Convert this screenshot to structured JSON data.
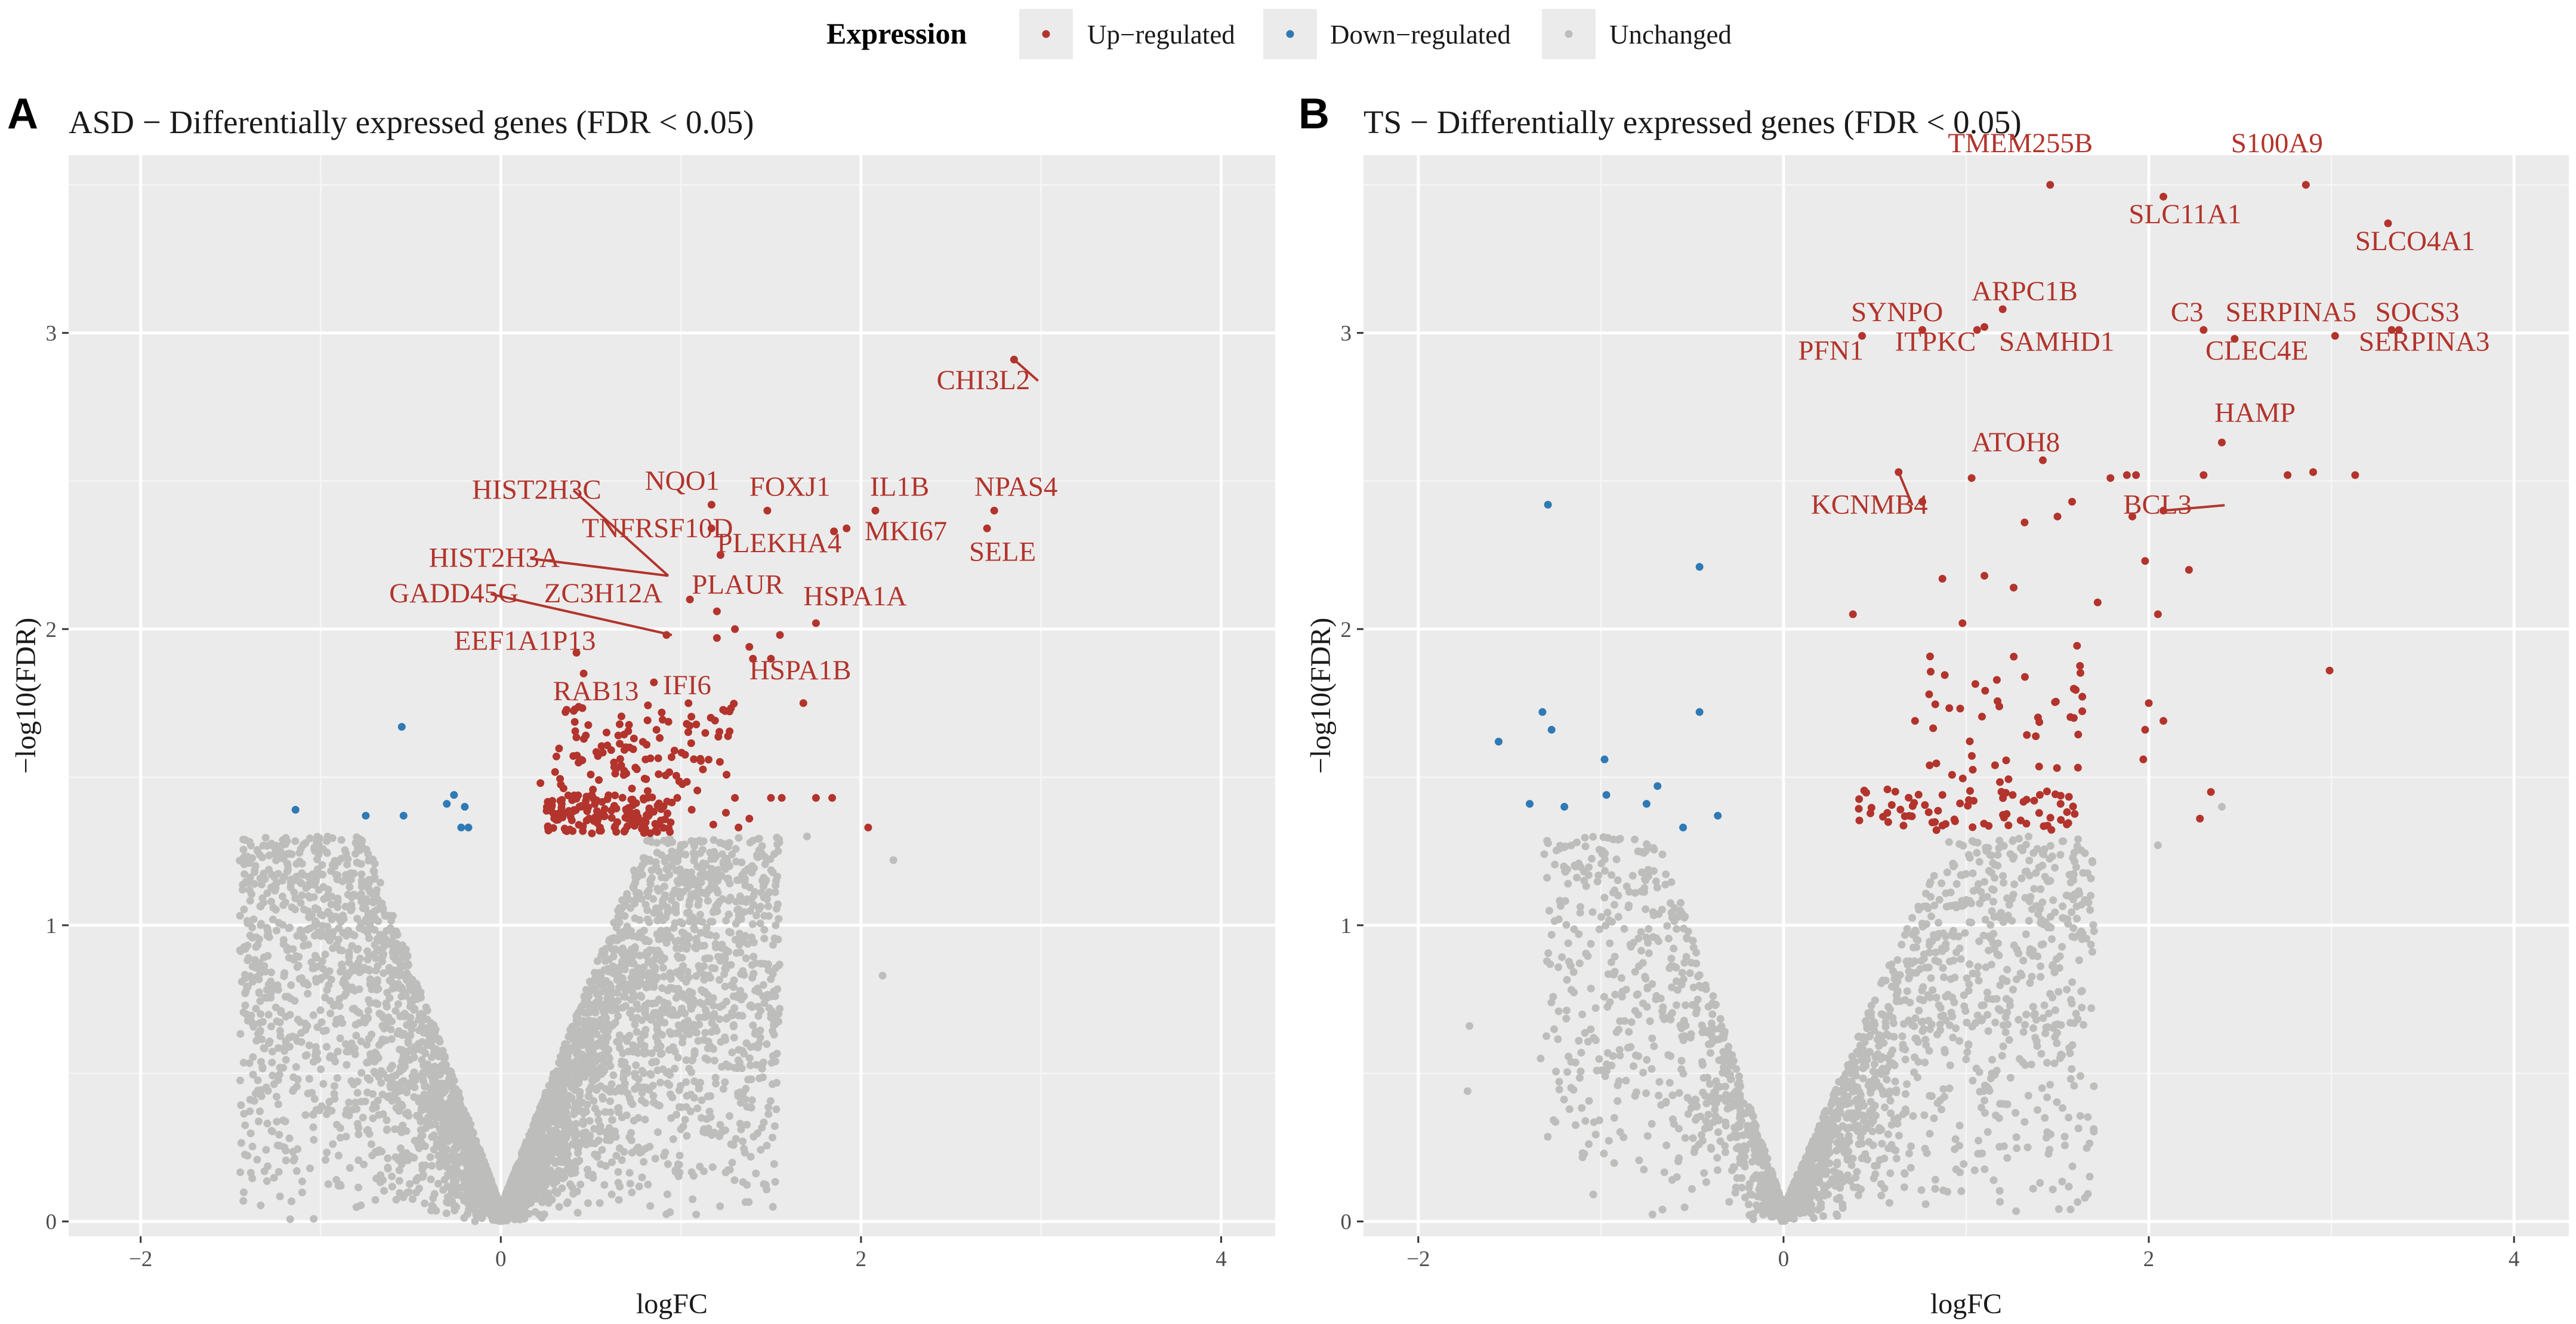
{
  "legend": {
    "title": "Expression",
    "items": [
      {
        "key": "up",
        "label": "Up−regulated",
        "color": "#b2342c"
      },
      {
        "key": "down",
        "label": "Down−regulated",
        "color": "#2f79b5"
      },
      {
        "key": "unchanged",
        "label": "Unchanged",
        "color": "#bdbdbb"
      }
    ]
  },
  "chart_data": [
    {
      "type": "scatter",
      "panel": "A",
      "title": "ASD − Differentially expressed genes (FDR < 0.05)",
      "xlabel": "logFC",
      "ylabel": "−log10(FDR)",
      "xlim": [
        -2.4,
        4.3
      ],
      "ylim": [
        -0.05,
        3.6
      ],
      "xticks": [
        -2,
        0,
        2,
        4
      ],
      "yticks": [
        0,
        1,
        2,
        3
      ],
      "xtick_labels": [
        "−2",
        "0",
        "2",
        "4"
      ],
      "ytick_labels": [
        "0",
        "1",
        "2",
        "3"
      ],
      "up_points": [
        [
          2.85,
          2.91
        ],
        [
          2.7,
          2.34
        ],
        [
          2.74,
          2.4
        ],
        [
          2.08,
          2.4
        ],
        [
          1.92,
          2.34
        ],
        [
          1.85,
          2.33
        ],
        [
          1.48,
          2.4
        ],
        [
          1.17,
          2.42
        ],
        [
          1.17,
          2.34
        ],
        [
          1.22,
          2.25
        ],
        [
          1.05,
          2.1
        ],
        [
          1.2,
          2.06
        ],
        [
          1.75,
          2.02
        ],
        [
          1.3,
          2.0
        ],
        [
          1.55,
          1.98
        ],
        [
          1.2,
          1.97
        ],
        [
          0.92,
          1.98
        ],
        [
          1.38,
          1.94
        ],
        [
          1.5,
          1.9
        ],
        [
          1.4,
          1.9
        ],
        [
          0.42,
          1.92
        ],
        [
          0.46,
          1.85
        ],
        [
          0.85,
          1.82
        ],
        [
          1.68,
          1.75
        ],
        [
          2.04,
          1.33
        ],
        [
          1.84,
          1.43
        ],
        [
          1.75,
          1.43
        ],
        [
          1.56,
          1.43
        ],
        [
          1.5,
          1.43
        ],
        [
          1.3,
          1.43
        ],
        [
          1.25,
          1.38
        ],
        [
          1.38,
          1.36
        ],
        [
          1.18,
          1.34
        ],
        [
          1.32,
          1.33
        ],
        [
          0.88,
          1.34
        ],
        [
          1.06,
          1.39
        ],
        [
          0.98,
          1.43
        ],
        [
          0.22,
          1.48
        ]
      ],
      "up_clusters": [
        {
          "x_range": [
            0.25,
            0.95
          ],
          "y_range": [
            1.31,
            1.44
          ],
          "count": 150
        },
        {
          "x_range": [
            0.28,
            1.3
          ],
          "y_range": [
            1.45,
            1.75
          ],
          "count": 110
        }
      ],
      "down_points": [
        [
          -1.14,
          1.39
        ],
        [
          -0.75,
          1.37
        ],
        [
          -0.54,
          1.37
        ],
        [
          -0.55,
          1.67
        ],
        [
          -0.3,
          1.41
        ],
        [
          -0.26,
          1.44
        ],
        [
          -0.2,
          1.4
        ],
        [
          -0.22,
          1.33
        ],
        [
          -0.18,
          1.33
        ]
      ],
      "unchanged": {
        "count": 5000,
        "left_x": [
          -1.45,
          0
        ],
        "right_x": [
          0,
          1.55
        ],
        "y_max": 1.3,
        "outliers": [
          [
            -1.42,
            0.77
          ],
          [
            -1.02,
            0.57
          ],
          [
            -0.88,
            0.67
          ],
          [
            -0.9,
            0.99
          ],
          [
            2.12,
            0.83
          ],
          [
            2.18,
            1.22
          ],
          [
            1.7,
            1.3
          ]
        ]
      },
      "labels": [
        {
          "text": "CHI3L2",
          "x": 2.42,
          "y": 2.81,
          "anchor_x": 2.85,
          "anchor_y": 2.91
        },
        {
          "text": "NPAS4",
          "x": 2.63,
          "y": 2.45
        },
        {
          "text": "SELE",
          "x": 2.6,
          "y": 2.23
        },
        {
          "text": "IL1B",
          "x": 2.05,
          "y": 2.45
        },
        {
          "text": "MKI67",
          "x": 2.02,
          "y": 2.3
        },
        {
          "text": "FOXJ1",
          "x": 1.38,
          "y": 2.45
        },
        {
          "text": "NQO1",
          "x": 0.8,
          "y": 2.47
        },
        {
          "text": "HIST2H3C",
          "x": -0.16,
          "y": 2.44,
          "anchor_x": 0.93,
          "anchor_y": 2.18
        },
        {
          "text": "TNFRSF10D",
          "x": 0.45,
          "y": 2.31
        },
        {
          "text": "PLEKHA4",
          "x": 1.2,
          "y": 2.26
        },
        {
          "text": "HIST2H3A",
          "x": -0.4,
          "y": 2.21,
          "anchor_x": 0.93,
          "anchor_y": 2.18
        },
        {
          "text": "PLAUR",
          "x": 1.06,
          "y": 2.12
        },
        {
          "text": "GADD45G",
          "x": -0.62,
          "y": 2.09,
          "anchor_x": 0.95,
          "anchor_y": 1.98
        },
        {
          "text": "ZC3H12A",
          "x": 0.24,
          "y": 2.09
        },
        {
          "text": "HSPA1A",
          "x": 1.68,
          "y": 2.08
        },
        {
          "text": "EEF1A1P13",
          "x": -0.26,
          "y": 1.93
        },
        {
          "text": "RAB13",
          "x": 0.29,
          "y": 1.76
        },
        {
          "text": "IFI6",
          "x": 0.9,
          "y": 1.78
        },
        {
          "text": "HSPA1B",
          "x": 1.38,
          "y": 1.83
        }
      ]
    },
    {
      "type": "scatter",
      "panel": "B",
      "title": "TS − Differentially expressed genes (FDR < 0.05)",
      "xlabel": "logFC",
      "ylabel": "−log10(FDR)",
      "xlim": [
        -2.3,
        4.3
      ],
      "ylim": [
        -0.05,
        3.6
      ],
      "xticks": [
        -2,
        0,
        2,
        4
      ],
      "yticks": [
        0,
        1,
        2,
        3
      ],
      "xtick_labels": [
        "−2",
        "0",
        "2",
        "4"
      ],
      "ytick_labels": [
        "0",
        "1",
        "2",
        "3"
      ],
      "up_points": [
        [
          1.46,
          3.5
        ],
        [
          2.86,
          3.5
        ],
        [
          2.08,
          3.46
        ],
        [
          3.31,
          3.37
        ],
        [
          2.3,
          3.01
        ],
        [
          2.47,
          2.98
        ],
        [
          3.02,
          2.99
        ],
        [
          3.33,
          3.01
        ],
        [
          3.37,
          3.01
        ],
        [
          0.43,
          2.99
        ],
        [
          0.76,
          3.01
        ],
        [
          1.06,
          3.01
        ],
        [
          1.1,
          3.02
        ],
        [
          1.2,
          3.08
        ],
        [
          2.4,
          2.63
        ],
        [
          1.42,
          2.57
        ],
        [
          0.63,
          2.53
        ],
        [
          1.03,
          2.51
        ],
        [
          1.79,
          2.51
        ],
        [
          1.88,
          2.52
        ],
        [
          1.93,
          2.52
        ],
        [
          2.3,
          2.52
        ],
        [
          2.76,
          2.52
        ],
        [
          2.9,
          2.53
        ],
        [
          3.13,
          2.52
        ],
        [
          2.08,
          2.4
        ],
        [
          0.76,
          2.43
        ],
        [
          1.58,
          2.43
        ],
        [
          1.32,
          2.36
        ],
        [
          1.5,
          2.38
        ],
        [
          1.98,
          2.23
        ],
        [
          1.91,
          2.38
        ],
        [
          0.87,
          2.17
        ],
        [
          1.1,
          2.18
        ],
        [
          1.26,
          2.14
        ],
        [
          2.22,
          2.2
        ],
        [
          0.38,
          2.05
        ],
        [
          1.72,
          2.09
        ],
        [
          2.05,
          2.05
        ],
        [
          0.98,
          2.02
        ],
        [
          2.99,
          1.86
        ],
        [
          1.98,
          1.66
        ],
        [
          2.0,
          1.75
        ],
        [
          2.08,
          1.69
        ],
        [
          1.97,
          1.56
        ],
        [
          0.72,
          1.69
        ],
        [
          0.8,
          1.54
        ],
        [
          0.87,
          1.44
        ],
        [
          2.34,
          1.45
        ],
        [
          2.28,
          1.36
        ]
      ],
      "up_clusters": [
        {
          "x_range": [
            0.4,
            1.6
          ],
          "y_range": [
            1.32,
            1.46
          ],
          "count": 70
        },
        {
          "x_range": [
            0.78,
            1.65
          ],
          "y_range": [
            1.47,
            1.95
          ],
          "count": 45
        }
      ],
      "down_points": [
        [
          -1.29,
          2.42
        ],
        [
          -0.46,
          2.21
        ],
        [
          -1.32,
          1.72
        ],
        [
          -1.27,
          1.66
        ],
        [
          -0.98,
          1.56
        ],
        [
          -1.56,
          1.62
        ],
        [
          -0.46,
          1.72
        ],
        [
          -0.69,
          1.47
        ],
        [
          -0.97,
          1.44
        ],
        [
          -0.75,
          1.41
        ],
        [
          -1.39,
          1.41
        ],
        [
          -0.36,
          1.37
        ],
        [
          -0.55,
          1.33
        ],
        [
          -1.2,
          1.4
        ]
      ],
      "unchanged": {
        "count": 2300,
        "left_x": [
          -1.3,
          0
        ],
        "right_x": [
          0,
          1.7
        ],
        "y_max": 1.3,
        "outliers": [
          [
            -1.72,
            0.66
          ],
          [
            -1.73,
            0.44
          ],
          [
            -1.33,
            0.55
          ],
          [
            -1.31,
            1.24
          ],
          [
            2.4,
            1.4
          ],
          [
            2.05,
            1.27
          ],
          [
            1.7,
            0.98
          ]
        ]
      },
      "labels": [
        {
          "text": "TMEM255B",
          "x": 0.9,
          "y": 3.61
        },
        {
          "text": "S100A9",
          "x": 2.45,
          "y": 3.61
        },
        {
          "text": "SLC11A1",
          "x": 1.89,
          "y": 3.37
        },
        {
          "text": "SLCO4A1",
          "x": 3.13,
          "y": 3.28
        },
        {
          "text": "SYNPO",
          "x": 0.37,
          "y": 3.04
        },
        {
          "text": "ARPC1B",
          "x": 1.03,
          "y": 3.11
        },
        {
          "text": "C3",
          "x": 2.12,
          "y": 3.04
        },
        {
          "text": "SERPINA5",
          "x": 2.42,
          "y": 3.04
        },
        {
          "text": "SOCS3",
          "x": 3.24,
          "y": 3.04
        },
        {
          "text": "PFN1",
          "x": 0.08,
          "y": 2.91
        },
        {
          "text": "ITPKC",
          "x": 0.61,
          "y": 2.94
        },
        {
          "text": "SAMHD1",
          "x": 1.18,
          "y": 2.94
        },
        {
          "text": "CLEC4E",
          "x": 2.31,
          "y": 2.91
        },
        {
          "text": "SERPINA3",
          "x": 3.15,
          "y": 2.94
        },
        {
          "text": "ATOH8",
          "x": 1.03,
          "y": 2.6
        },
        {
          "text": "HAMP",
          "x": 2.36,
          "y": 2.7
        },
        {
          "text": "KCNMB4",
          "x": 0.15,
          "y": 2.39,
          "anchor_x": 0.63,
          "anchor_y": 2.53
        },
        {
          "text": "BCL3",
          "x": 1.86,
          "y": 2.39,
          "anchor_x": 2.08,
          "anchor_y": 2.4
        }
      ]
    }
  ]
}
